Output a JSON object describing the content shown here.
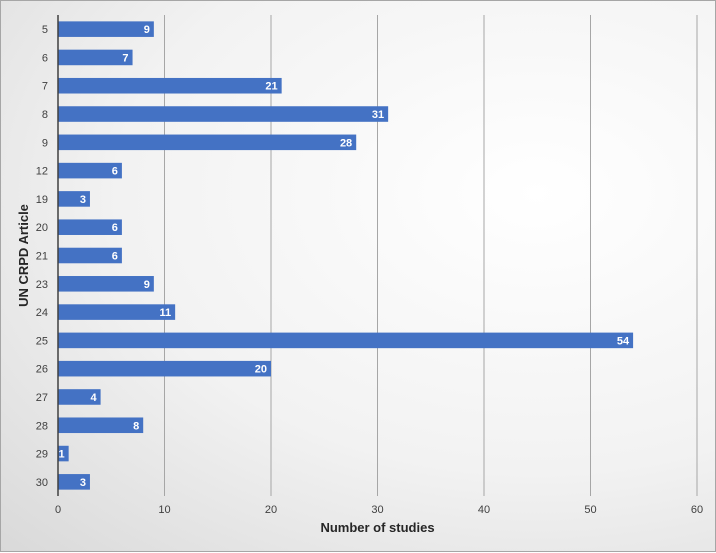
{
  "chart_data": {
    "type": "bar",
    "orientation": "horizontal",
    "categories": [
      "5",
      "6",
      "7",
      "8",
      "9",
      "12",
      "19",
      "20",
      "21",
      "23",
      "24",
      "25",
      "26",
      "27",
      "28",
      "29",
      "30"
    ],
    "values": [
      9,
      7,
      21,
      31,
      28,
      6,
      3,
      6,
      6,
      9,
      11,
      54,
      20,
      4,
      8,
      1,
      3
    ],
    "xlabel": "Number of studies",
    "ylabel": "UN CRPD Article",
    "xlim": [
      0,
      60
    ],
    "xticks": [
      0,
      10,
      20,
      30,
      40,
      50,
      60
    ],
    "grid": "vertical",
    "data_labels": true,
    "colors": {
      "bar": "#4472c4",
      "grid": "#a6a6a6",
      "axis": "#404040"
    }
  }
}
